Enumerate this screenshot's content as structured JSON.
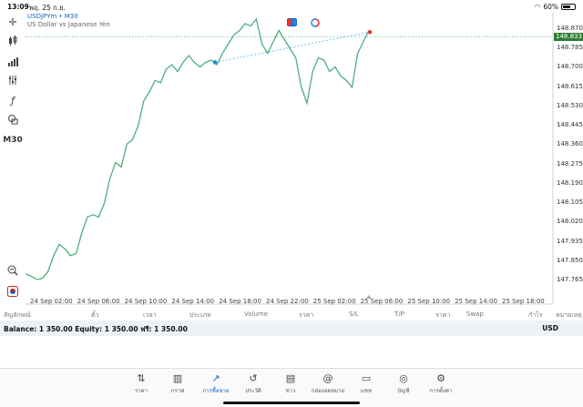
{
  "status_bar": {
    "time": "13:09",
    "date": "พฤ. 25 ก.ย.",
    "wifi_icon": "wifi-icon",
    "battery_percent": "60%"
  },
  "toolbar": {
    "tools": [
      {
        "name": "crosshair-icon",
        "glyph": "✛"
      },
      {
        "name": "candles-icon",
        "glyph": "┃"
      },
      {
        "name": "indicators-icon",
        "glyph": "▟"
      },
      {
        "name": "objects-icon",
        "glyph": "⫶"
      },
      {
        "name": "function-icon",
        "glyph": "ƒ"
      },
      {
        "name": "shapes-icon",
        "glyph": "⌬"
      }
    ],
    "timeframe": "M30",
    "bottom_tools": [
      {
        "name": "magnifier-icon",
        "glyph": "🔍"
      },
      {
        "name": "trade-settings-icon",
        "glyph": "◉"
      }
    ]
  },
  "symbol": {
    "title": "USDJPYm • M30",
    "description": "US Dollar vs Japanese Yen"
  },
  "colors": {
    "line": "#4caf7d",
    "current_price": "#2e7d32",
    "buy_marker": "#1e88e5",
    "sell_marker": "#e53935",
    "active_tab": "#1565c0"
  },
  "chart_data": {
    "type": "line",
    "series": [
      {
        "values": [
          147.79,
          147.78,
          147.765,
          147.77,
          147.8,
          147.87,
          147.92,
          147.9,
          147.87,
          147.88,
          147.97,
          148.04,
          148.05,
          148.04,
          148.1,
          148.21,
          148.28,
          148.26,
          148.36,
          148.38,
          148.44,
          148.55,
          148.59,
          148.64,
          148.63,
          148.69,
          148.71,
          148.68,
          148.72,
          148.75,
          148.72,
          148.7,
          148.72,
          148.73,
          148.71,
          148.76,
          148.8,
          148.84,
          148.86,
          148.89,
          148.88,
          148.91,
          148.8,
          148.76,
          148.81,
          148.86,
          148.82,
          148.78,
          148.74,
          148.61,
          148.54,
          148.68,
          148.74,
          148.73,
          148.68,
          148.7,
          148.66,
          148.64,
          148.61,
          148.76,
          148.81,
          148.86
        ]
      }
    ],
    "price_ticks": [
      "148.870",
      "148.785",
      "148.700",
      "148.615",
      "148.530",
      "148.445",
      "148.360",
      "148.275",
      "148.190",
      "148.105",
      "148.020",
      "147.935",
      "147.850",
      "147.765"
    ],
    "current_price": "148.833",
    "time_ticks": [
      "24 Sep 02:00",
      "24 Sep 06:00",
      "24 Sep 10:00",
      "24 Sep 14:00",
      "24 Sep 18:00",
      "24 Sep 22:00",
      "25 Sep 02:00",
      "25 Sep 06:00",
      "25 Sep 10:00",
      "25 Sep 14:00",
      "25 Sep 18:00"
    ],
    "ylim": [
      147.72,
      148.92
    ],
    "trend_line": {
      "from_price": 148.72,
      "to_price": 148.853
    },
    "grid": false
  },
  "columns": [
    "สัญลักษณ์",
    "ตั๋ว",
    "เวลา",
    "ประเภท",
    "Volume",
    "ราคา",
    "S/L",
    "T/P",
    "ราคา",
    "Swap",
    "กำไร",
    "หมายเหตุ"
  ],
  "balance": {
    "text": "Balance: 1 350.00 Equity: 1 350.00 ฟรี: 1 350.00",
    "currency": "USD"
  },
  "nav": [
    {
      "name": "nav-quotes",
      "icon_name": "arrows-updown-icon",
      "glyph": "⇅",
      "label": "ราคา",
      "active": false
    },
    {
      "name": "nav-chart",
      "icon_name": "candles-icon",
      "glyph": "▥",
      "label": "กราฟ",
      "active": false
    },
    {
      "name": "nav-trade",
      "icon_name": "trend-icon",
      "glyph": "↗",
      "label": "การซื้อขาย",
      "active": true
    },
    {
      "name": "nav-history",
      "icon_name": "history-icon",
      "glyph": "↺",
      "label": "ประวัติ",
      "active": false
    },
    {
      "name": "nav-news",
      "icon_name": "news-icon",
      "glyph": "▤",
      "label": "ข่าว",
      "active": false
    },
    {
      "name": "nav-mailbox",
      "icon_name": "at-icon",
      "glyph": "@",
      "label": "กล่องจดหมาย",
      "active": false
    },
    {
      "name": "nav-chat",
      "icon_name": "chat-icon",
      "glyph": "▭",
      "label": "แชท",
      "active": false
    },
    {
      "name": "nav-accounts",
      "icon_name": "user-icon",
      "glyph": "◎",
      "label": "บัญชี",
      "active": false
    },
    {
      "name": "nav-settings",
      "icon_name": "gear-icon",
      "glyph": "⚙",
      "label": "การตั้งค่า",
      "active": false
    }
  ]
}
